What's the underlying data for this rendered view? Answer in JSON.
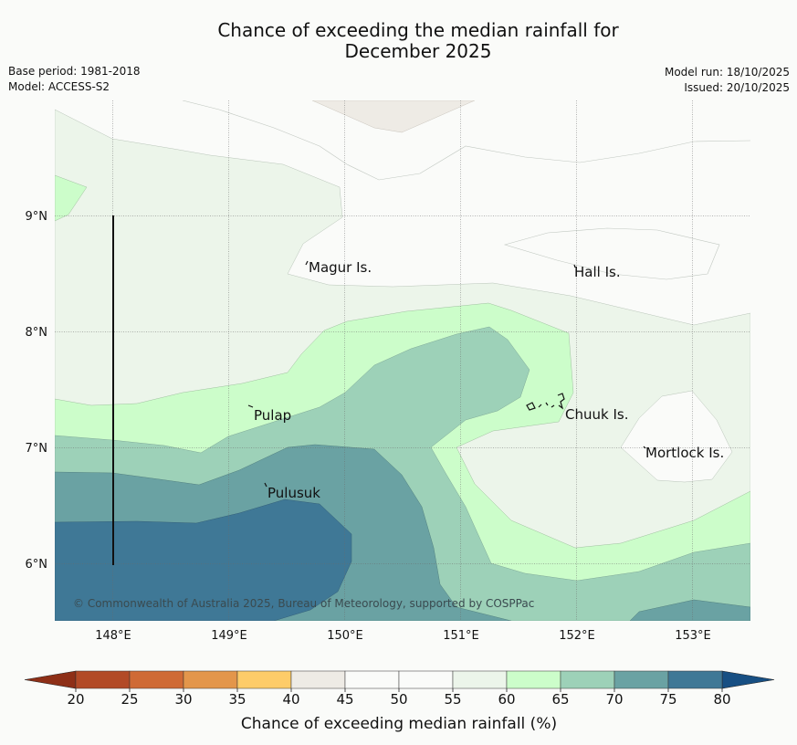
{
  "header": {
    "title_line1": "Chance of exceeding the median rainfall for",
    "title_line2": "December 2025",
    "base_period": "Base period: 1981-2018",
    "model": "Model: ACCESS-S2",
    "model_run": "Model run: 18/10/2025",
    "issued": "Issued: 20/10/2025"
  },
  "map": {
    "lat_labels": [
      "9°N",
      "8°N",
      "7°N",
      "6°N"
    ],
    "lon_labels": [
      "148°E",
      "149°E",
      "150°E",
      "151°E",
      "152°E",
      "153°E"
    ],
    "places": [
      "Magur Is.",
      "Hall Is.",
      "Pulap",
      "Chuuk Is.",
      "Mortlock Is.",
      "Pulusuk"
    ],
    "copyright": "© Commonwealth of Australia 2025, Bureau of Meteorology, supported by COSPPac"
  },
  "colorbar": {
    "label": "Chance of exceeding median rainfall (%)",
    "ticks": [
      "20",
      "25",
      "30",
      "35",
      "40",
      "45",
      "50",
      "55",
      "60",
      "65",
      "70",
      "75",
      "80"
    ],
    "low_color": "#8e2f17",
    "high_color": "#174f83",
    "bin_colors": [
      "#b24a27",
      "#cf6a35",
      "#e3964b",
      "#fdcc69",
      "#eeebe5",
      "#fafbf9",
      "#fafbf9",
      "#ecf5ea",
      "#ccfdca",
      "#9dd1b8",
      "#6aa2a3",
      "#3f7896"
    ]
  }
}
